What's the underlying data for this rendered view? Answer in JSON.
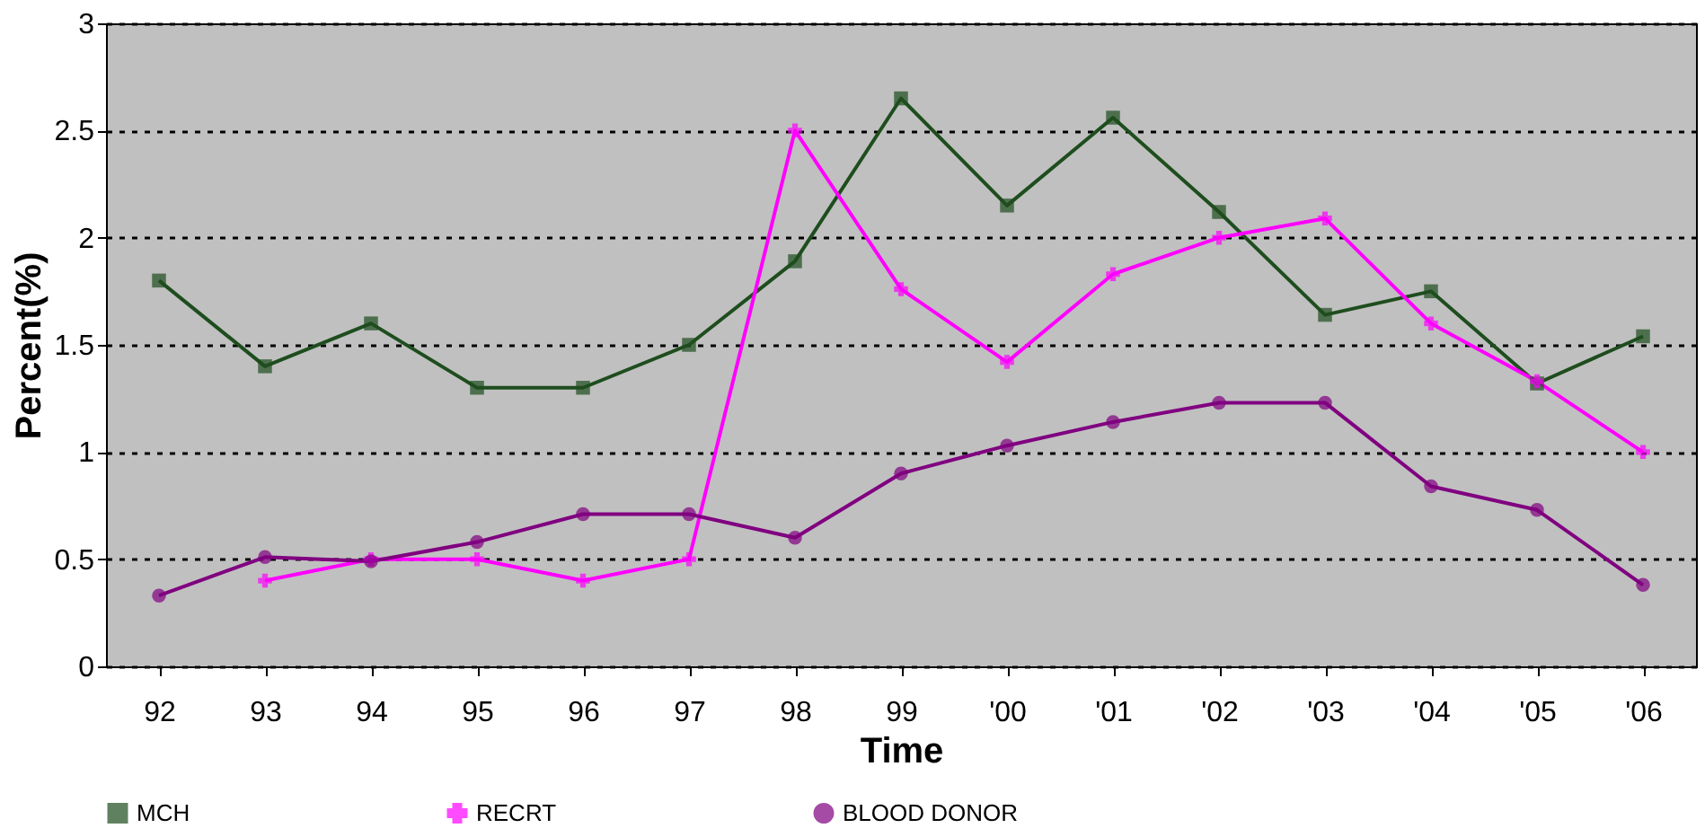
{
  "chart_data": {
    "type": "line",
    "xlabel": "Time",
    "ylabel": "Percent(%)",
    "categories": [
      "92",
      "93",
      "94",
      "95",
      "96",
      "97",
      "98",
      "99",
      "'00",
      "'01",
      "'02",
      "'03",
      "'04",
      "'05",
      "'06"
    ],
    "series": [
      {
        "name": "MCH",
        "color": "#1e4d1e",
        "marker": "square",
        "values": [
          1.8,
          1.4,
          1.6,
          1.3,
          1.3,
          1.5,
          1.89,
          2.65,
          2.15,
          2.56,
          2.12,
          1.64,
          1.75,
          1.32,
          1.54
        ]
      },
      {
        "name": "RECRT",
        "color": "#ff00ff",
        "marker": "cross",
        "values": [
          null,
          0.4,
          0.5,
          0.5,
          0.4,
          0.5,
          2.5,
          1.76,
          1.42,
          1.83,
          2.0,
          2.09,
          1.6,
          1.33,
          1.0
        ]
      },
      {
        "name": "BLOOD DONOR",
        "color": "#800080",
        "marker": "circle",
        "values": [
          0.33,
          0.51,
          0.49,
          0.58,
          0.71,
          0.71,
          0.6,
          0.9,
          1.03,
          1.14,
          1.23,
          1.23,
          0.84,
          0.73,
          0.38
        ]
      }
    ],
    "ylim": [
      0,
      3
    ],
    "yticks": [
      0,
      0.5,
      1,
      1.5,
      2,
      2.5,
      3
    ],
    "grid": "y",
    "legend": "bottom",
    "line_style": "solid"
  }
}
